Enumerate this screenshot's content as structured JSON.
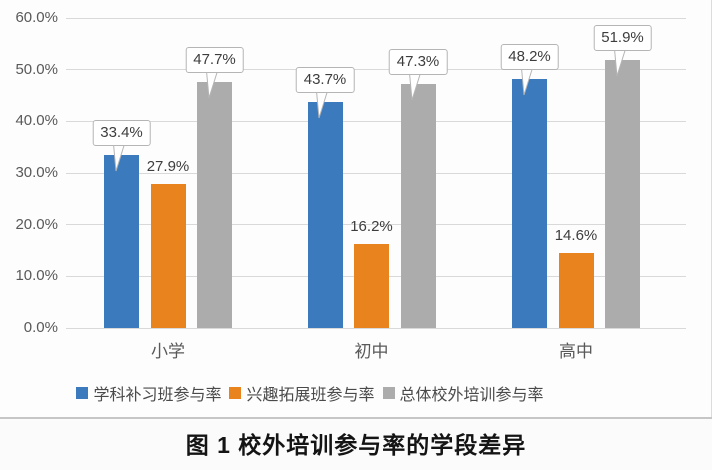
{
  "chart_data": {
    "type": "bar",
    "title": "图 1 校外培训参与率的学段差异",
    "categories": [
      "小学",
      "初中",
      "高中"
    ],
    "series": [
      {
        "name": "学科补习班参与率",
        "color": "#3A7ABD",
        "values": [
          33.4,
          43.7,
          48.2
        ],
        "label_style": "callout"
      },
      {
        "name": "兴趣拓展班参与率",
        "color": "#E8831D",
        "values": [
          27.9,
          16.2,
          14.6
        ],
        "label_style": "plain"
      },
      {
        "name": "总体校外培训参与率",
        "color": "#ACACAC",
        "values": [
          47.7,
          47.3,
          51.9
        ],
        "label_style": "callout"
      }
    ],
    "ylim": [
      0,
      60
    ],
    "yticks": [
      0,
      10,
      20,
      30,
      40,
      50,
      60
    ],
    "ytick_labels": [
      "0.0%",
      "10.0%",
      "20.0%",
      "30.0%",
      "40.0%",
      "50.0%",
      "60.0%"
    ],
    "data_labels": [
      [
        "33.4%",
        "43.7%",
        "48.2%"
      ],
      [
        "27.9%",
        "16.2%",
        "14.6%"
      ],
      [
        "47.7%",
        "47.3%",
        "51.9%"
      ]
    ],
    "grid": true,
    "legend_position": "bottom"
  },
  "caption": {
    "text": "图 1  校外培训参与率的学段差异"
  },
  "colors": {
    "gridline": "#d9d9d9",
    "axis_text": "#595959",
    "label_text": "#3d3d3d",
    "callout_border": "#b5b5b5",
    "divider": "#c6c6c6"
  }
}
